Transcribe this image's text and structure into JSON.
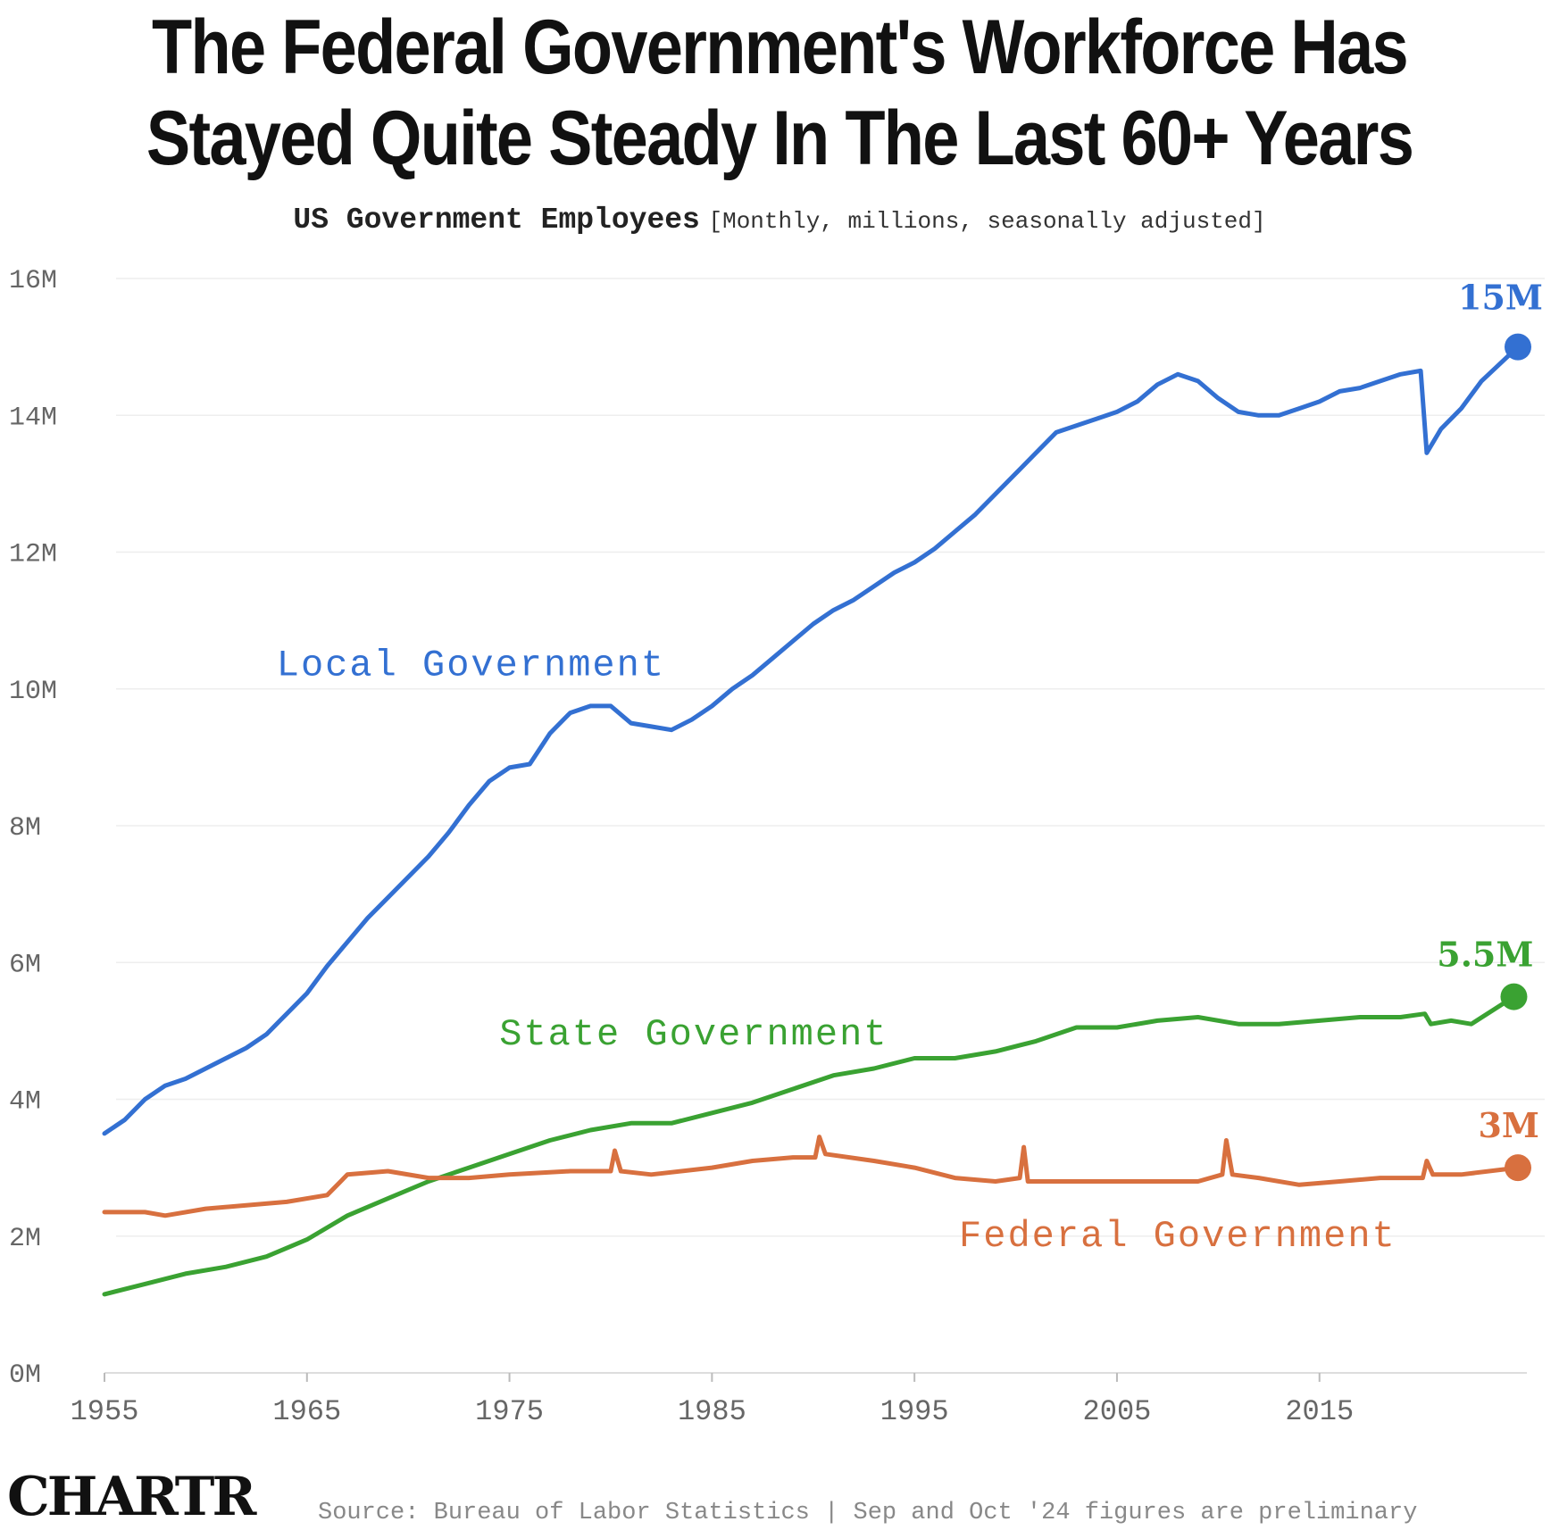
{
  "title_line1": "The Federal Government's Workforce Has",
  "title_line2": "Stayed Quite Steady In The Last 60+ Years",
  "subtitle_main": "US Government Employees",
  "subtitle_note": "[Monthly, millions, seasonally adjusted]",
  "logo": "CHARTR",
  "source": "Source: Bureau of Labor Statistics | Sep and Oct '24 figures are preliminary",
  "colors": {
    "local": "#3370d2",
    "state": "#3aa232",
    "federal": "#d8703f",
    "grid": "#eeeeee",
    "axis_text": "#666666"
  },
  "chart_data": {
    "type": "line",
    "title": "The Federal Government's Workforce Has Stayed Quite Steady In The Last 60+ Years",
    "subtitle": "US Government Employees [Monthly, millions, seasonally adjusted]",
    "xlabel": "",
    "ylabel": "",
    "xlim": [
      1955,
      2024.8
    ],
    "ylim": [
      0,
      16
    ],
    "x_ticks": [
      1955,
      1965,
      1975,
      1985,
      1995,
      2005,
      2015
    ],
    "y_ticks": [
      {
        "value": 0,
        "label": "0M"
      },
      {
        "value": 2,
        "label": "2M"
      },
      {
        "value": 4,
        "label": "4M"
      },
      {
        "value": 6,
        "label": "6M"
      },
      {
        "value": 8,
        "label": "8M"
      },
      {
        "value": 10,
        "label": "10M"
      },
      {
        "value": 12,
        "label": "12M"
      },
      {
        "value": 14,
        "label": "14M"
      },
      {
        "value": 16,
        "label": "16M"
      }
    ],
    "grid": true,
    "legend": "inline labels",
    "series": [
      {
        "name": "Local Government",
        "color": "#3370d2",
        "end_label": "15M",
        "points": [
          [
            1955,
            3.5
          ],
          [
            1956,
            3.7
          ],
          [
            1957,
            4.0
          ],
          [
            1958,
            4.2
          ],
          [
            1959,
            4.3
          ],
          [
            1960,
            4.45
          ],
          [
            1961,
            4.6
          ],
          [
            1962,
            4.75
          ],
          [
            1963,
            4.95
          ],
          [
            1964,
            5.25
          ],
          [
            1965,
            5.55
          ],
          [
            1966,
            5.95
          ],
          [
            1967,
            6.3
          ],
          [
            1968,
            6.65
          ],
          [
            1969,
            6.95
          ],
          [
            1970,
            7.25
          ],
          [
            1971,
            7.55
          ],
          [
            1972,
            7.9
          ],
          [
            1973,
            8.3
          ],
          [
            1974,
            8.65
          ],
          [
            1975,
            8.85
          ],
          [
            1976,
            8.9
          ],
          [
            1977,
            9.35
          ],
          [
            1978,
            9.65
          ],
          [
            1979,
            9.75
          ],
          [
            1980,
            9.75
          ],
          [
            1981,
            9.5
          ],
          [
            1982,
            9.45
          ],
          [
            1983,
            9.4
          ],
          [
            1984,
            9.55
          ],
          [
            1985,
            9.75
          ],
          [
            1986,
            10.0
          ],
          [
            1987,
            10.2
          ],
          [
            1988,
            10.45
          ],
          [
            1989,
            10.7
          ],
          [
            1990,
            10.95
          ],
          [
            1991,
            11.15
          ],
          [
            1992,
            11.3
          ],
          [
            1993,
            11.5
          ],
          [
            1994,
            11.7
          ],
          [
            1995,
            11.85
          ],
          [
            1996,
            12.05
          ],
          [
            1997,
            12.3
          ],
          [
            1998,
            12.55
          ],
          [
            1999,
            12.85
          ],
          [
            2000,
            13.15
          ],
          [
            2001,
            13.45
          ],
          [
            2002,
            13.75
          ],
          [
            2003,
            13.85
          ],
          [
            2004,
            13.95
          ],
          [
            2005,
            14.05
          ],
          [
            2006,
            14.2
          ],
          [
            2007,
            14.45
          ],
          [
            2008,
            14.6
          ],
          [
            2009,
            14.5
          ],
          [
            2010,
            14.25
          ],
          [
            2011,
            14.05
          ],
          [
            2012,
            14.0
          ],
          [
            2013,
            14.0
          ],
          [
            2014,
            14.1
          ],
          [
            2015,
            14.2
          ],
          [
            2016,
            14.35
          ],
          [
            2017,
            14.4
          ],
          [
            2018,
            14.5
          ],
          [
            2019,
            14.6
          ],
          [
            2020.0,
            14.65
          ],
          [
            2020.3,
            13.45
          ],
          [
            2021,
            13.8
          ],
          [
            2022,
            14.1
          ],
          [
            2023,
            14.5
          ],
          [
            2024.8,
            15.0
          ]
        ]
      },
      {
        "name": "State Government",
        "color": "#3aa232",
        "end_label": "5.5M",
        "points": [
          [
            1955,
            1.15
          ],
          [
            1957,
            1.3
          ],
          [
            1959,
            1.45
          ],
          [
            1961,
            1.55
          ],
          [
            1963,
            1.7
          ],
          [
            1965,
            1.95
          ],
          [
            1967,
            2.3
          ],
          [
            1969,
            2.55
          ],
          [
            1971,
            2.8
          ],
          [
            1973,
            3.0
          ],
          [
            1975,
            3.2
          ],
          [
            1977,
            3.4
          ],
          [
            1979,
            3.55
          ],
          [
            1981,
            3.65
          ],
          [
            1983,
            3.65
          ],
          [
            1985,
            3.8
          ],
          [
            1987,
            3.95
          ],
          [
            1989,
            4.15
          ],
          [
            1991,
            4.35
          ],
          [
            1993,
            4.45
          ],
          [
            1995,
            4.6
          ],
          [
            1997,
            4.6
          ],
          [
            1999,
            4.7
          ],
          [
            2001,
            4.85
          ],
          [
            2003,
            5.05
          ],
          [
            2005,
            5.05
          ],
          [
            2007,
            5.15
          ],
          [
            2009,
            5.2
          ],
          [
            2011,
            5.1
          ],
          [
            2013,
            5.1
          ],
          [
            2015,
            5.15
          ],
          [
            2017,
            5.2
          ],
          [
            2019,
            5.2
          ],
          [
            2020.2,
            5.25
          ],
          [
            2020.5,
            5.1
          ],
          [
            2021.5,
            5.15
          ],
          [
            2022.5,
            5.1
          ],
          [
            2024.6,
            5.5
          ]
        ]
      },
      {
        "name": "Federal Government",
        "color": "#d8703f",
        "end_label": "3M",
        "points": [
          [
            1955,
            2.35
          ],
          [
            1957,
            2.35
          ],
          [
            1958,
            2.3
          ],
          [
            1960,
            2.4
          ],
          [
            1962,
            2.45
          ],
          [
            1964,
            2.5
          ],
          [
            1966,
            2.6
          ],
          [
            1967,
            2.9
          ],
          [
            1969,
            2.95
          ],
          [
            1971,
            2.85
          ],
          [
            1973,
            2.85
          ],
          [
            1975,
            2.9
          ],
          [
            1978,
            2.95
          ],
          [
            1980,
            2.95
          ],
          [
            1980.2,
            3.25
          ],
          [
            1980.5,
            2.95
          ],
          [
            1982,
            2.9
          ],
          [
            1985,
            3.0
          ],
          [
            1987,
            3.1
          ],
          [
            1989,
            3.15
          ],
          [
            1990.1,
            3.15
          ],
          [
            1990.3,
            3.45
          ],
          [
            1990.6,
            3.2
          ],
          [
            1993,
            3.1
          ],
          [
            1995,
            3.0
          ],
          [
            1997,
            2.85
          ],
          [
            1999,
            2.8
          ],
          [
            2000.2,
            2.85
          ],
          [
            2000.4,
            3.3
          ],
          [
            2000.6,
            2.8
          ],
          [
            2003,
            2.8
          ],
          [
            2006,
            2.8
          ],
          [
            2009,
            2.8
          ],
          [
            2010.2,
            2.9
          ],
          [
            2010.4,
            3.4
          ],
          [
            2010.7,
            2.9
          ],
          [
            2012,
            2.85
          ],
          [
            2014,
            2.75
          ],
          [
            2016,
            2.8
          ],
          [
            2018,
            2.85
          ],
          [
            2020.1,
            2.85
          ],
          [
            2020.3,
            3.1
          ],
          [
            2020.6,
            2.9
          ],
          [
            2022,
            2.9
          ],
          [
            2024.8,
            3.0
          ]
        ]
      }
    ],
    "annotations": [
      {
        "text": "Local Government",
        "series": "Local Government"
      },
      {
        "text": "State Government",
        "series": "State Government"
      },
      {
        "text": "Federal Government",
        "series": "Federal Government"
      }
    ]
  }
}
